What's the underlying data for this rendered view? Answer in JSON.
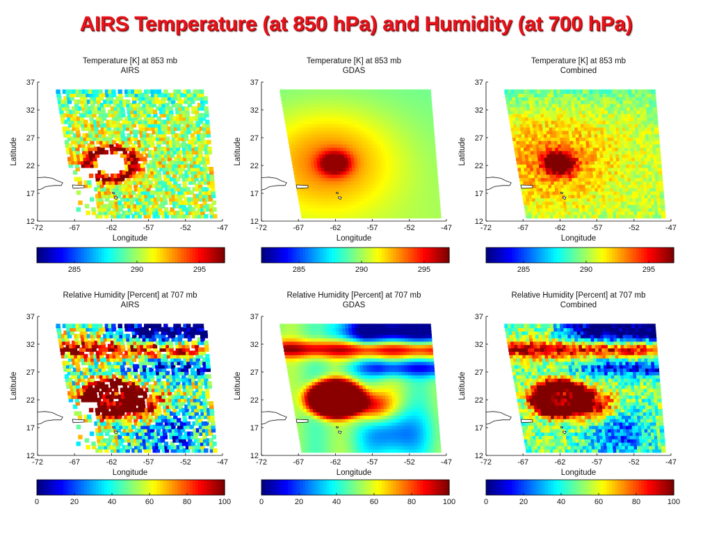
{
  "slide": {
    "title": "AIRS Temperature (at 850 hPa) and Humidity (at 700 hPa)"
  },
  "chart_data": [
    {
      "type": "heatmap",
      "title": "Temperature [K] at 853 mb",
      "subtitle": "AIRS",
      "variable": "temperature",
      "source": "airs",
      "xlabel": "Longitude",
      "ylabel": "Latitude",
      "xlim": [
        -72,
        -47
      ],
      "ylim": [
        12,
        37
      ],
      "xticks": [
        -72,
        -67,
        -62,
        -57,
        -52,
        -47
      ],
      "yticks": [
        12,
        17,
        22,
        27,
        32,
        37
      ],
      "colorbar": {
        "min": 282,
        "max": 297,
        "ticks": [
          285,
          290,
          295
        ]
      }
    },
    {
      "type": "heatmap",
      "title": "Temperature [K] at 853 mb",
      "subtitle": "GDAS",
      "variable": "temperature",
      "source": "gdas",
      "xlabel": "Longitude",
      "ylabel": "Latitude",
      "xlim": [
        -72,
        -47
      ],
      "ylim": [
        12,
        37
      ],
      "xticks": [
        -72,
        -67,
        -62,
        -57,
        -52,
        -47
      ],
      "yticks": [
        12,
        17,
        22,
        27,
        32,
        37
      ],
      "colorbar": {
        "min": 282,
        "max": 297,
        "ticks": [
          285,
          290,
          295
        ]
      }
    },
    {
      "type": "heatmap",
      "title": "Temperature [K] at 853 mb",
      "subtitle": "Combined",
      "variable": "temperature",
      "source": "combined",
      "xlabel": "Longitude",
      "ylabel": "Latitude",
      "xlim": [
        -72,
        -47
      ],
      "ylim": [
        12,
        37
      ],
      "xticks": [
        -72,
        -67,
        -62,
        -57,
        -52,
        -47
      ],
      "yticks": [
        12,
        17,
        22,
        27,
        32,
        37
      ],
      "colorbar": {
        "min": 282,
        "max": 297,
        "ticks": [
          285,
          290,
          295
        ]
      }
    },
    {
      "type": "heatmap",
      "title": "Relative Humidity [Percent] at 707 mb",
      "subtitle": "AIRS",
      "variable": "humidity",
      "source": "airs",
      "xlabel": "Longitude",
      "ylabel": "Latitude",
      "xlim": [
        -72,
        -47
      ],
      "ylim": [
        12,
        37
      ],
      "xticks": [
        -72,
        -67,
        -62,
        -57,
        -52,
        -47
      ],
      "yticks": [
        12,
        17,
        22,
        27,
        32,
        37
      ],
      "colorbar": {
        "min": 0,
        "max": 100,
        "ticks": [
          0,
          20,
          40,
          60,
          80,
          100
        ]
      }
    },
    {
      "type": "heatmap",
      "title": "Relative Humidity [Percent] at 707 mb",
      "subtitle": "GDAS",
      "variable": "humidity",
      "source": "gdas",
      "xlabel": "Longitude",
      "ylabel": "Latitude",
      "xlim": [
        -72,
        -47
      ],
      "ylim": [
        12,
        37
      ],
      "xticks": [
        -72,
        -67,
        -62,
        -57,
        -52,
        -47
      ],
      "yticks": [
        12,
        17,
        22,
        27,
        32,
        37
      ],
      "colorbar": {
        "min": 0,
        "max": 100,
        "ticks": [
          0,
          20,
          40,
          60,
          80,
          100
        ]
      }
    },
    {
      "type": "heatmap",
      "title": "Relative Humidity [Percent] at 707 mb",
      "subtitle": "Combined",
      "variable": "humidity",
      "source": "combined",
      "xlabel": "Longitude",
      "ylabel": "Latitude",
      "xlim": [
        -72,
        -47
      ],
      "ylim": [
        12,
        37
      ],
      "xticks": [
        -72,
        -67,
        -62,
        -57,
        -52,
        -47
      ],
      "yticks": [
        12,
        17,
        22,
        27,
        32,
        37
      ],
      "colorbar": {
        "min": 0,
        "max": 100,
        "ticks": [
          0,
          20,
          40,
          60,
          80,
          100
        ]
      }
    }
  ],
  "colors": {
    "title": "#e8121a",
    "colormap": "jet"
  }
}
